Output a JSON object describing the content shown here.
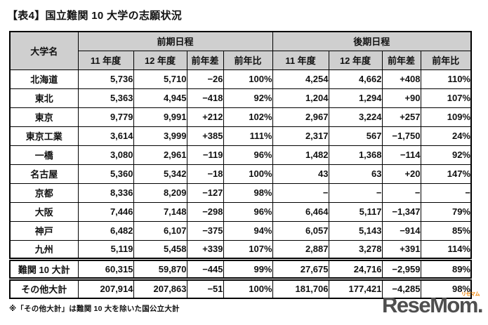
{
  "title": "【表4】国立難関 10 大学の志願状況",
  "table": {
    "corner_header": "大学名",
    "col_groups": [
      {
        "label": "前期日程"
      },
      {
        "label": "後期日程"
      }
    ],
    "sub_headers": [
      "11 年度",
      "12 年度",
      "前年差",
      "前年比",
      "11 年度",
      "12 年度",
      "前年差",
      "前年比"
    ],
    "rows": [
      {
        "name": "北海道",
        "cells": [
          "5,736",
          "5,710",
          "−26",
          "100%",
          "4,254",
          "4,662",
          "+408",
          "110%"
        ]
      },
      {
        "name": "東北",
        "cells": [
          "5,363",
          "4,945",
          "−418",
          "92%",
          "1,204",
          "1,294",
          "+90",
          "107%"
        ]
      },
      {
        "name": "東京",
        "cells": [
          "9,779",
          "9,991",
          "+212",
          "102%",
          "2,967",
          "3,224",
          "+257",
          "109%"
        ]
      },
      {
        "name": "東京工業",
        "cells": [
          "3,614",
          "3,999",
          "+385",
          "111%",
          "2,317",
          "567",
          "−1,750",
          "24%"
        ]
      },
      {
        "name": "一橋",
        "cells": [
          "3,080",
          "2,961",
          "−119",
          "96%",
          "1,482",
          "1,368",
          "−114",
          "92%"
        ]
      },
      {
        "name": "名古屋",
        "cells": [
          "5,360",
          "5,342",
          "−18",
          "100%",
          "43",
          "63",
          "+20",
          "147%"
        ]
      },
      {
        "name": "京都",
        "cells": [
          "8,336",
          "8,209",
          "−127",
          "98%",
          "−",
          "−",
          "−",
          "−"
        ]
      },
      {
        "name": "大阪",
        "cells": [
          "7,446",
          "7,148",
          "−298",
          "96%",
          "6,464",
          "5,117",
          "−1,347",
          "79%"
        ]
      },
      {
        "name": "神戸",
        "cells": [
          "6,482",
          "6,107",
          "−375",
          "94%",
          "6,057",
          "5,143",
          "−914",
          "85%"
        ]
      },
      {
        "name": "九州",
        "cells": [
          "5,119",
          "5,458",
          "+339",
          "107%",
          "2,887",
          "3,278",
          "+391",
          "114%"
        ]
      }
    ],
    "total_rows": [
      {
        "name": "難関 10 大計",
        "cells": [
          "60,315",
          "59,870",
          "−445",
          "99%",
          "27,675",
          "24,716",
          "−2,959",
          "89%"
        ]
      },
      {
        "name": "その他大計",
        "cells": [
          "207,914",
          "207,863",
          "−51",
          "100%",
          "181,706",
          "177,421",
          "−4,285",
          "98%"
        ]
      }
    ]
  },
  "footnote": "※「その他大計」は難関 10 大を除いた国公立大計",
  "logo": {
    "text": "ReseMom.",
    "tag": "リセマム"
  },
  "colors": {
    "header_bg": "#cfcfcf",
    "border": "#000000",
    "text": "#111111",
    "logo_gray": "#4f4f4f",
    "logo_orange": "#f08300"
  }
}
